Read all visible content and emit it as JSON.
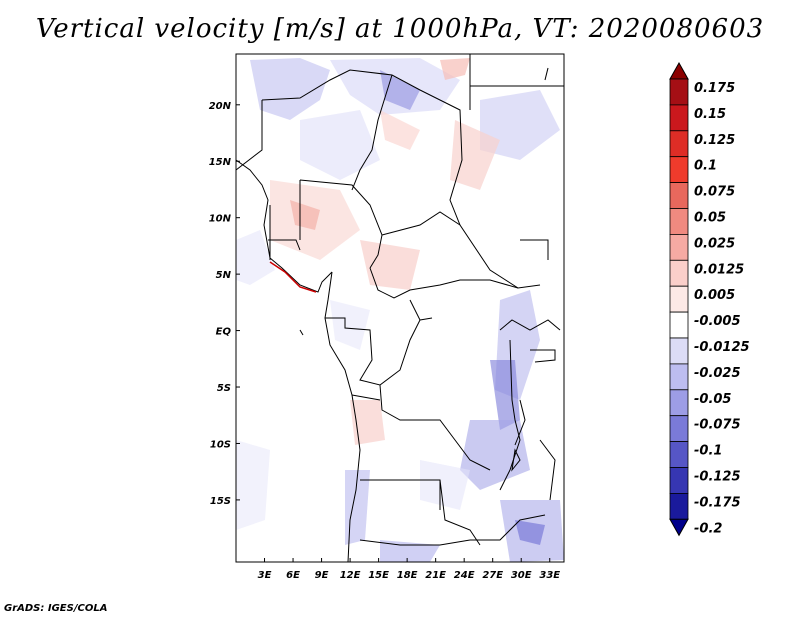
{
  "title": "Vertical velocity [m/s] at 1000hPa, VT: 2020080603",
  "credit": "GrADS: IGES/COLA",
  "map": {
    "lon_range": [
      0,
      34.5
    ],
    "lat_range": [
      -20.5,
      24.5
    ],
    "lat_labels": [
      "20N",
      "15N",
      "10N",
      "5N",
      "EQ",
      "5S",
      "10S",
      "15S"
    ],
    "lat_values": [
      20,
      15,
      10,
      5,
      0,
      -5,
      -10,
      -15
    ],
    "lon_labels": [
      "3E",
      "6E",
      "9E",
      "12E",
      "15E",
      "18E",
      "21E",
      "24E",
      "27E",
      "30E",
      "33E"
    ],
    "lon_values": [
      3,
      6,
      9,
      12,
      15,
      18,
      21,
      24,
      27,
      30,
      33
    ]
  },
  "colorbar": {
    "labels": [
      "0.175",
      "0.15",
      "0.125",
      "0.1",
      "0.075",
      "0.05",
      "0.025",
      "0.0125",
      "0.005",
      "-0.005",
      "-0.0125",
      "-0.025",
      "-0.05",
      "-0.075",
      "-0.1",
      "-0.125",
      "-0.175",
      "-0.2"
    ],
    "colors": [
      "#a50f15",
      "#cb181d",
      "#de2d26",
      "#ef3b2c",
      "#e8685d",
      "#f08a80",
      "#f6aaa3",
      "#fbcfca",
      "#fde9e6",
      "#ffffff",
      "#dcdcf6",
      "#bdbdf0",
      "#9d9de6",
      "#7a7ad8",
      "#5656c6",
      "#3636b2",
      "#1a1a9c",
      "#0b0b80"
    ],
    "top_color": "#8b0000",
    "bottom_color": "#00008b"
  }
}
